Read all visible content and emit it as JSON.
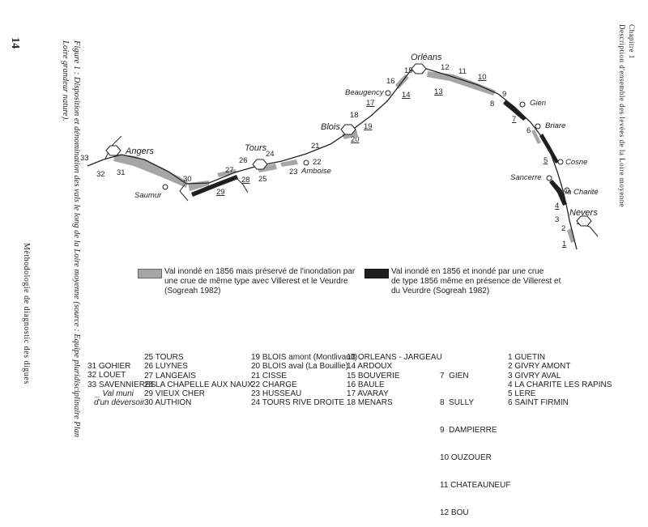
{
  "page": {
    "number": "14",
    "caption_line1": "Figure 1 : Disposition et dénomination des vals le long de la Loire moyenne (source : Equipe pluridisciplinaire Plan",
    "caption_line2": "Loire grandeur nature).",
    "running_footer": "Méthodologie de diagnostic des digues",
    "header_line1": "Chapitre 1",
    "header_line2": "Description d'ensemble des levées de la Loire moyenne"
  },
  "colors": {
    "preserved": "#a6a6a6",
    "flooded": "#1f1f1f",
    "river": "#222222"
  },
  "legend": {
    "preserved": "Val inondé en 1856 mais préservé de l'inondation par\nune crue de même type avec Villerest et le Veurdre\n(Sogreah 1982)",
    "flooded": "Val inondé en 1856 et inondé par une crue\nde type 1856 même en présence de Villerest et\ndu Veurdre (Sogreah 1982)"
  },
  "cities": {
    "angers": "Angers",
    "saumur": "Saumur",
    "tours": "Tours",
    "amboise": "Amboise",
    "blois": "Blois",
    "beaugency": "Beaugency",
    "orleans": "Orléans",
    "gien": "Gien",
    "briare": "Briare",
    "cosne": "Cosne",
    "sancerre": "Sancerre",
    "la_charite": "la Charité",
    "nevers": "Nevers"
  },
  "val_numbers": {
    "n1": "1",
    "n2": "2",
    "n3": "3",
    "n4": "4",
    "n5": "5",
    "n6": "6",
    "n7": "7",
    "n8": "8",
    "n9": "9",
    "n10": "10",
    "n11": "11",
    "n12": "12",
    "n13": "13",
    "n14": "14",
    "n15": "15",
    "n16": "16",
    "n17": "17",
    "n18": "18",
    "n19": "19",
    "n20": "20",
    "n21": "21",
    "n22": "22",
    "n23": "23",
    "n24": "24",
    "n25": "25",
    "n26": "26",
    "n27": "27",
    "n28": "28",
    "n29": "29",
    "n30": "30",
    "n31": "31",
    "n32": "32",
    "n33": "33"
  },
  "key": {
    "col1": [
      "31 GOHIER",
      "32 LOUET",
      "33 SAVENNIERES",
      "_ Val muni",
      "d'un déversoir"
    ],
    "col2": [
      "25 TOURS",
      "26 LUYNES",
      "27 LANGEAIS",
      "28 LA CHAPELLE AUX NAUX",
      "29 VIEUX CHER",
      "30 AUTHION"
    ],
    "col3": [
      "19 BLOIS amont (Montlivault)",
      "20 BLOIS aval (La Bouillie)",
      "21 CISSE",
      "22 CHARGE",
      "23 HUSSEAU",
      "24 TOURS RIVE DROITE"
    ],
    "col4": [
      "13 ORLEANS - JARGEAU",
      "14 ARDOUX",
      "15 BOUVERIE",
      "16 BAULE",
      "17 AVARAY",
      "18 MENARS"
    ],
    "col5": [
      "7  GIEN",
      "8  SULLY",
      "9  DAMPIERRE",
      "10 OUZOUER",
      "11 CHATEAUNEUF",
      "12 BOU"
    ],
    "col6": [
      "1 GUETIN",
      "2 GIVRY AMONT",
      "3 GIVRY AVAL",
      "4 LA CHARITE LES RAPINS",
      "5 LERE",
      "6 SAINT FIRMIN"
    ]
  }
}
